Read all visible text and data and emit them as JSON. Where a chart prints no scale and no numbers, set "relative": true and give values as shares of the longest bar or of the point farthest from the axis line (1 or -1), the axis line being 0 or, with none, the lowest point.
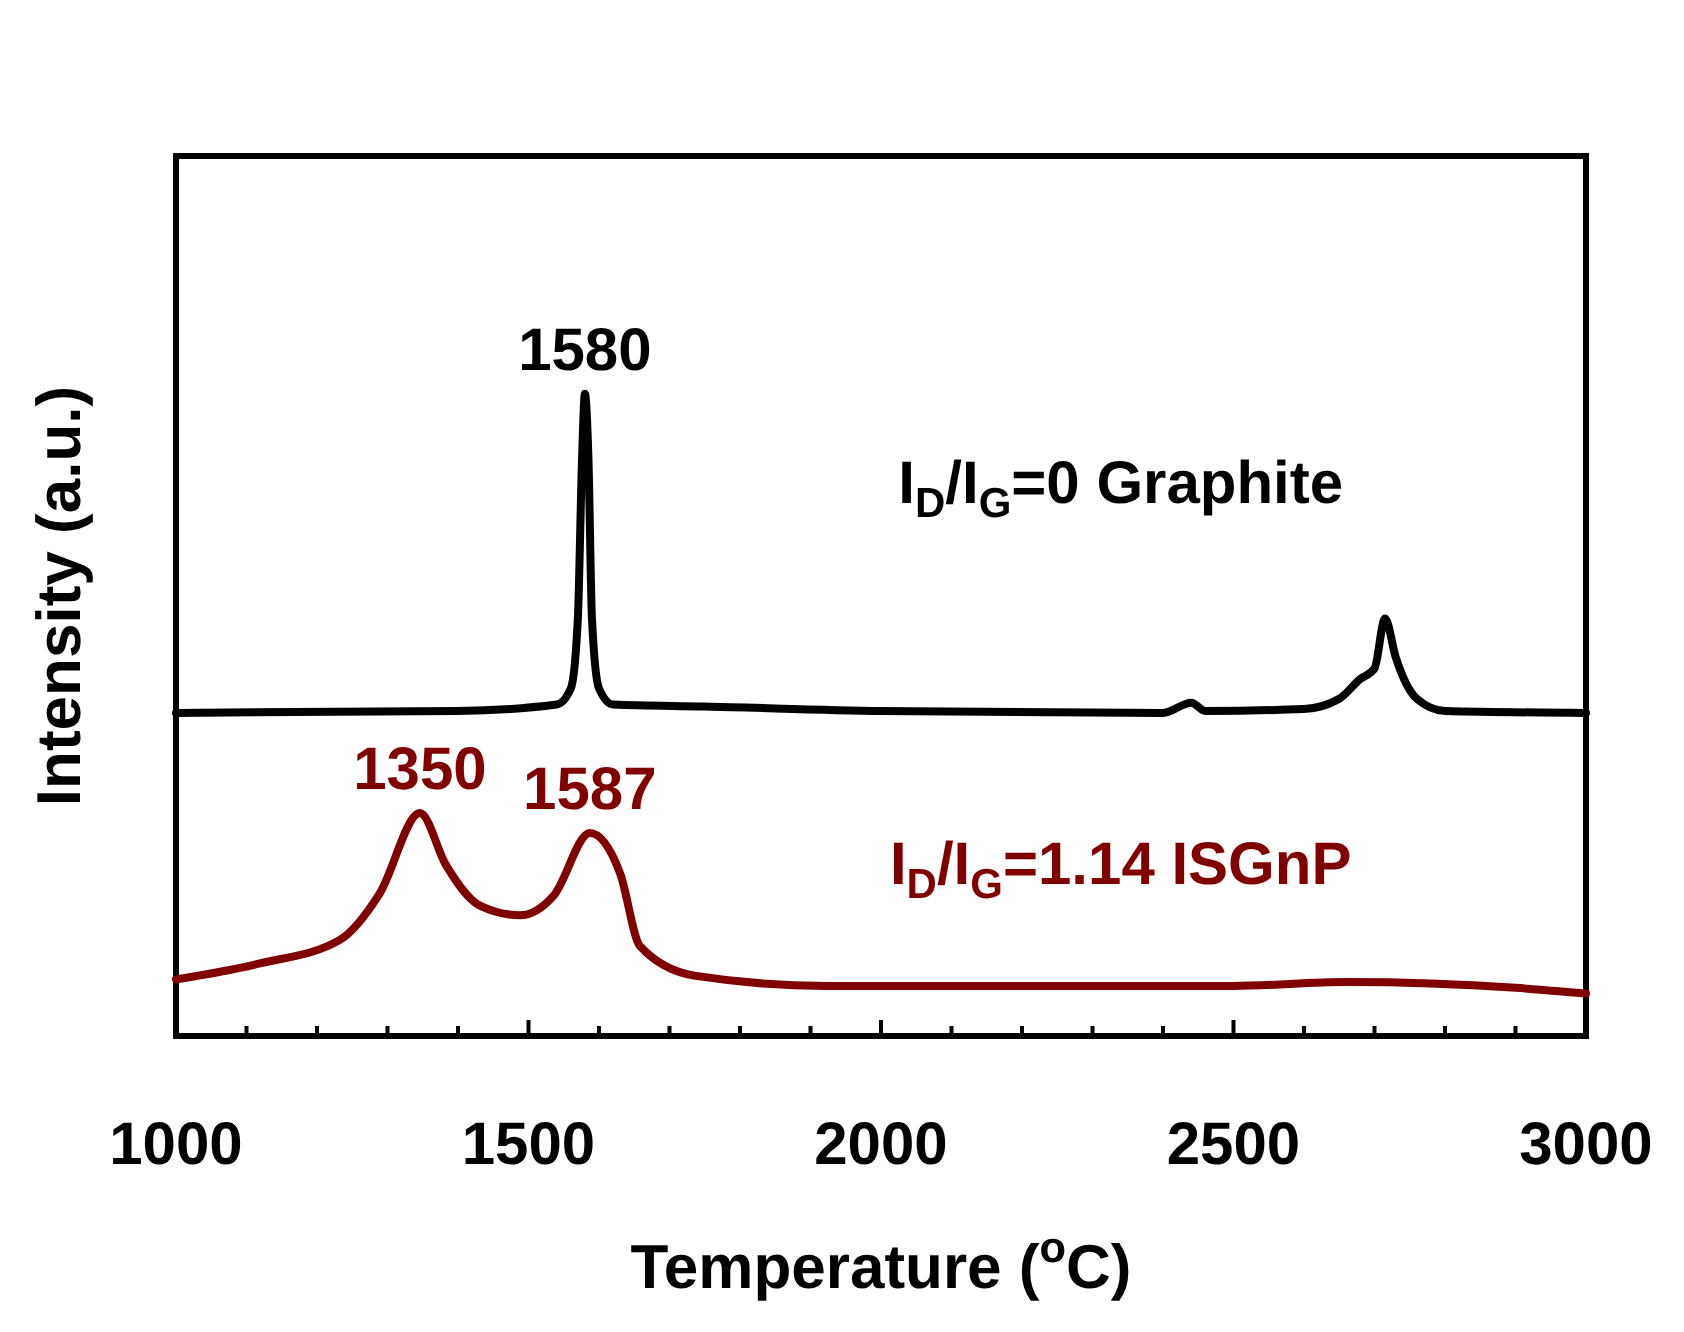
{
  "chart_data": {
    "type": "line",
    "relative": true,
    "xlabel": "Temperature ($^{o}$C)",
    "ylabel": "Intensity (a.u.)",
    "xlim": [
      1000,
      3000
    ],
    "xticks": [
      1000,
      {
        "value": 1100,
        "label": null
      },
      {
        "value": 1200,
        "label": null
      },
      {
        "value": 1300,
        "label": null
      },
      {
        "value": 1400,
        "label": null
      },
      1500,
      {
        "value": 1600,
        "label": null
      },
      {
        "value": 1700,
        "label": null
      },
      {
        "value": 1800,
        "label": null
      },
      {
        "value": 1900,
        "label": null
      },
      2000,
      {
        "value": 2100,
        "label": null
      },
      {
        "value": 2200,
        "label": null
      },
      {
        "value": 2300,
        "label": null
      },
      {
        "value": 2400,
        "label": null
      },
      2500,
      {
        "value": 2600,
        "label": null
      },
      {
        "value": 2700,
        "label": null
      },
      {
        "value": 2800,
        "label": null
      },
      {
        "value": 2900,
        "label": null
      },
      3000
    ],
    "grid": false,
    "marker": "none",
    "line_style": "solid",
    "series": [
      {
        "name": "I$_{D}$/I$_{G}$=0  Graphite",
        "color": "#000000",
        "x": [
          1000,
          1400,
          1540,
          1560,
          1570,
          1576,
          1580,
          1585,
          1590,
          1600,
          1620,
          1750,
          2000,
          2400,
          2440,
          2460,
          2600,
          2650,
          2680,
          2700,
          2715,
          2730,
          2760,
          2800,
          3000
        ],
        "values": [
          0.503,
          0.506,
          0.516,
          0.541,
          0.65,
          0.9,
          1,
          0.9,
          0.65,
          0.541,
          0.516,
          0.513,
          0.506,
          0.503,
          0.519,
          0.506,
          0.509,
          0.525,
          0.556,
          0.572,
          0.65,
          0.59,
          0.525,
          0.506,
          0.503
        ]
      },
      {
        "name": "I$_{D}$/I$_{G}$=1.14 ISGnP",
        "color": "#800000",
        "x": [
          1000,
          1119,
          1233,
          1289,
          1346,
          1383,
          1431,
          1488,
          1536,
          1587,
          1630,
          1658,
          1735,
          1922,
          2500,
          2660,
          2900,
          3000
        ],
        "values": [
          0.088,
          0.113,
          0.15,
          0.222,
          0.347,
          0.266,
          0.203,
          0.188,
          0.219,
          0.316,
          0.253,
          0.14,
          0.094,
          0.078,
          0.078,
          0.084,
          0.075,
          0.066
        ]
      }
    ],
    "annotations": [
      {
        "text": "1580",
        "x": 1580,
        "y": 1
      },
      {
        "text": "1350",
        "x": 1346,
        "y": 0.347
      },
      {
        "text": "1587",
        "x": 1587,
        "y": 0.316
      }
    ]
  }
}
